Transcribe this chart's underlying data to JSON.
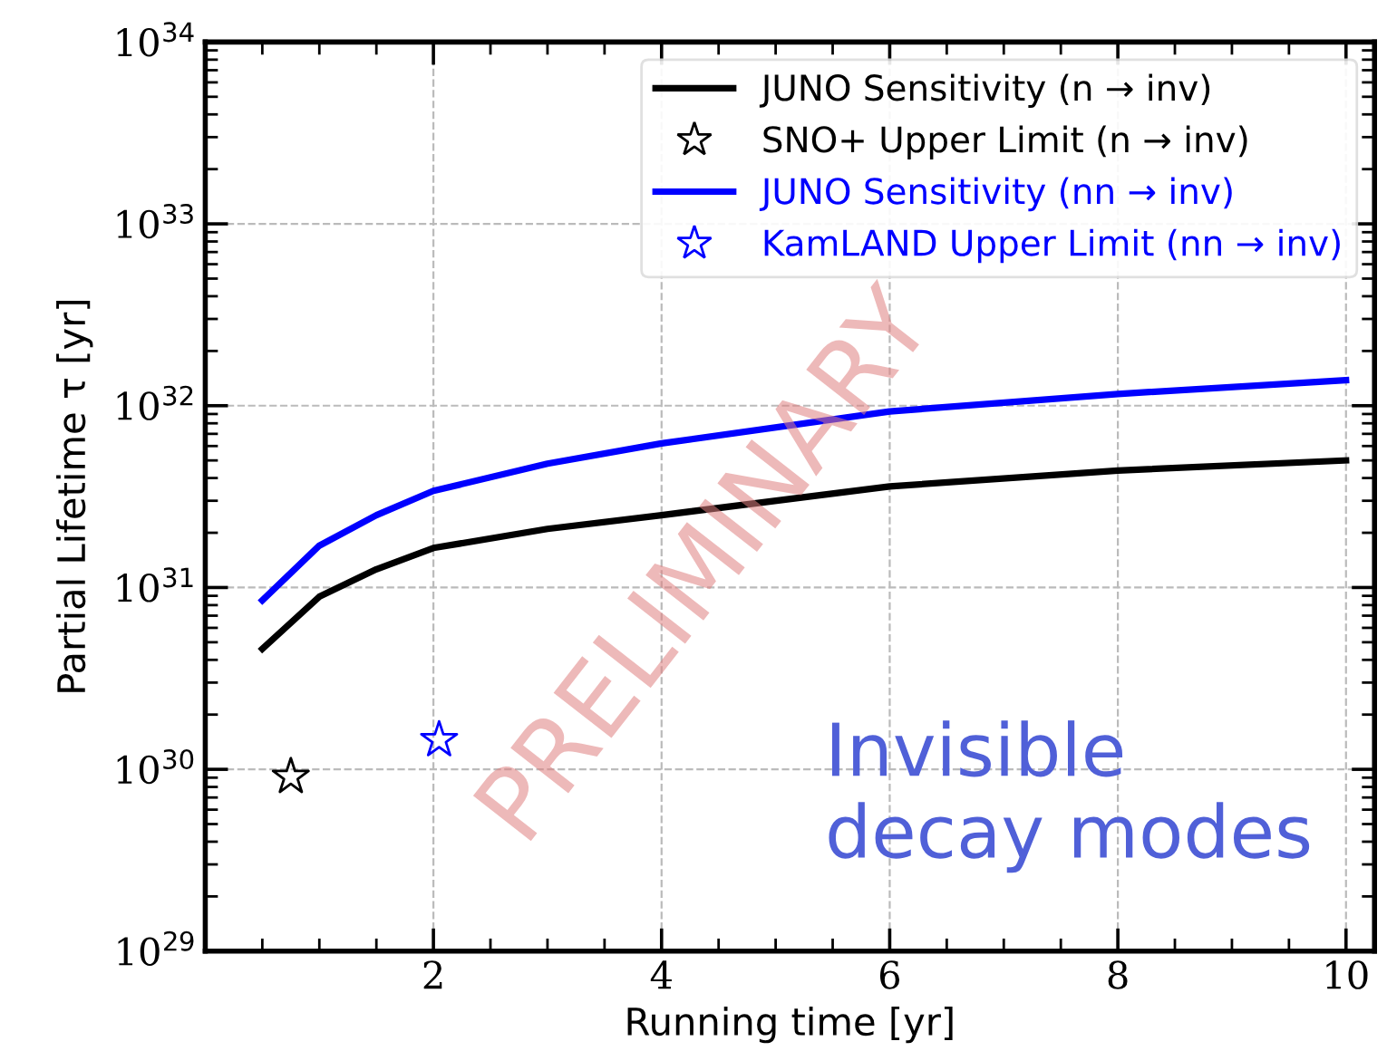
{
  "chart_data": {
    "type": "line",
    "xlabel": "Running time [yr]",
    "ylabel": "Partial Lifetime τ [yr]",
    "log": "y",
    "grid": true,
    "legend": "top right",
    "xlim": [
      0,
      10.25
    ],
    "xticks": [
      2,
      4,
      6,
      8,
      10
    ],
    "ylim": [
      1e+29,
      1e+34
    ],
    "yticks": [
      {
        "value": 1e+29,
        "label": "10$^{29}$"
      },
      {
        "value": 1e+30,
        "label": "10$^{30}$"
      },
      {
        "value": 1e+31,
        "label": "10$^{31}$"
      },
      {
        "value": 1e+32,
        "label": "10$^{32}$"
      },
      {
        "value": 1e+33,
        "label": "10$^{33}$"
      },
      {
        "value": 1e+34,
        "label": "10$^{34}$"
      }
    ],
    "series": [
      {
        "name": "JUNO Sensitivity (n → inv)",
        "color": "#000000",
        "x": [
          0.5,
          1,
          1.5,
          2,
          3,
          4,
          6,
          8,
          10
        ],
        "values": [
          4.6e+30,
          8.9e+30,
          1.26e+31,
          1.65e+31,
          2.1e+31,
          2.5e+31,
          3.6e+31,
          4.4e+31,
          5e+31
        ]
      },
      {
        "name": "SNO+ Upper Limit (n → inv)",
        "type": "scatter",
        "marker": "star",
        "color": "#000000",
        "x": [
          0.75
        ],
        "values": [
          9.1e+29
        ]
      },
      {
        "name": "JUNO Sensitivity (nn → inv)",
        "color": "#0000ff",
        "x": [
          0.5,
          1,
          1.5,
          2,
          3,
          4,
          6,
          8,
          10
        ],
        "values": [
          8.5e+30,
          1.7e+31,
          2.5e+31,
          3.4e+31,
          4.8e+31,
          6.2e+31,
          9.3e+31,
          1.16e+32,
          1.38e+32
        ]
      },
      {
        "name": "KamLAND Upper Limit (nn → inv)",
        "type": "scatter",
        "marker": "star",
        "color": "#0000ff",
        "x": [
          2.05
        ],
        "values": [
          1.45e+30
        ]
      }
    ],
    "annotations": [
      "Invisible\ndecay modes",
      "PRELIMINARY"
    ]
  }
}
